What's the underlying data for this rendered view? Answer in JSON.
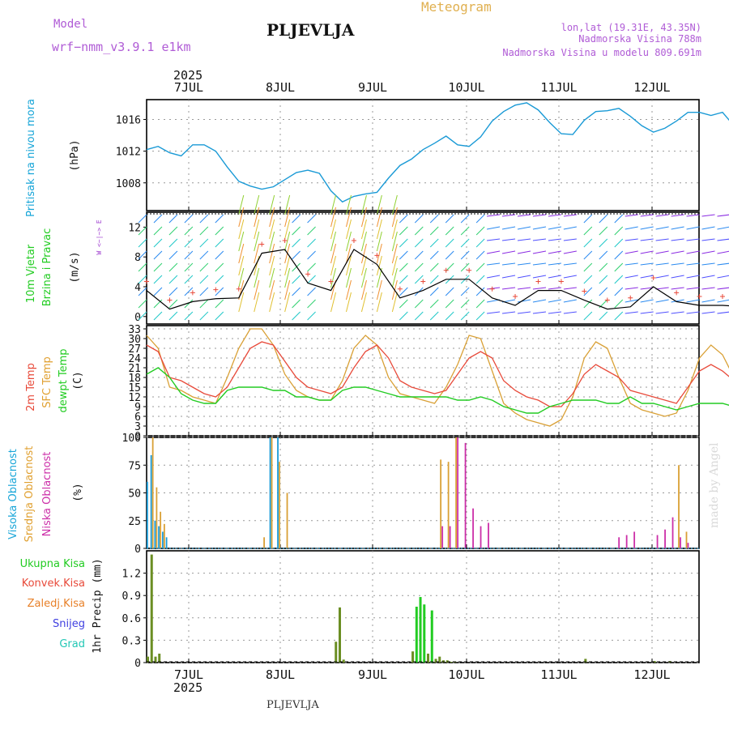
{
  "header": {
    "model_label": "Model",
    "model_value": "wrf−nmm_v3.9.1 e1km",
    "title": "PLJEVLJA",
    "meteogram_label": "Meteogram",
    "lonlat": "lon,lat (19.31E, 43.35N)",
    "altitude": "Nadmorska Visina 788m",
    "model_altitude": "Nadmorska Visina u modelu 809.691m",
    "year_top": "2025",
    "year_bottom": "2025",
    "footer_station": "PLJEVLJA",
    "watermark": "made by Angel"
  },
  "days": [
    "7JUL",
    "8JUL",
    "9JUL",
    "10JUL",
    "11JUL",
    "12JUL"
  ],
  "colors": {
    "pressure": "#1a9ad6",
    "temp2m": "#e84a3a",
    "sfc": "#d9a035",
    "dewpt": "#22cc22",
    "high_cloud": "#1a9ad6",
    "mid_cloud": "#d9a035",
    "low_cloud": "#cc2fa8",
    "precip": "#6b8e23",
    "label_cyan": "#17a5d8",
    "label_green": "#22cc22",
    "label_red": "#e84a3a",
    "label_orange": "#e8812a",
    "label_blue": "#4040e0",
    "label_teal": "#22c7b5",
    "label_purple": "#a040d0"
  },
  "panels": {
    "pressure": {
      "label": "Pritisak na nivou mora",
      "unit": "(hPa)"
    },
    "wind": {
      "label1": "10m Vjetar",
      "label2": "Brzina i Pravac",
      "unit": "(m/s)",
      "compass": "W <−|−> E"
    },
    "temp": {
      "label1": "2m Temp",
      "label2": "SFC Temp",
      "label3": "dewpt Temp",
      "unit": "(C)"
    },
    "cloud": {
      "label1": "Visoka Oblacnost",
      "label2": "Srednja Oblacnost",
      "label3": "Niska Oblacnost",
      "unit": "(%)"
    },
    "precip": {
      "unit": "1hr Precip (mm)",
      "legend": [
        "Ukupna Kisa",
        "Konvek.Kisa",
        "Zaledj.Kisa",
        "Snijeg",
        "Grad"
      ]
    }
  },
  "chart_data": [
    {
      "type": "line",
      "title": "Pritisak na nivou mora",
      "ylabel": "(hPa)",
      "ylim": [
        1004.5,
        1018.5
      ],
      "yticks": [
        1008,
        1012,
        1016
      ],
      "x_hours_from": "6JUL 12h",
      "x": [
        0,
        3,
        6,
        9,
        12,
        15,
        18,
        21,
        24,
        27,
        30,
        33,
        36,
        39,
        42,
        45,
        48,
        51,
        54,
        57,
        60,
        63,
        66,
        69,
        72,
        75,
        78,
        81,
        84,
        87,
        90,
        93,
        96,
        99,
        102,
        105,
        108,
        111,
        114,
        117,
        120,
        123,
        126,
        129,
        132,
        135,
        138,
        141,
        144,
        147,
        150,
        153,
        156,
        159,
        162,
        165,
        168,
        171,
        174,
        177,
        180
      ],
      "series": [
        {
          "values": [
            1012.2,
            1012.6,
            1011.8,
            1011.4,
            1012.8,
            1012.8,
            1012.0,
            1010.0,
            1008.2,
            1007.6,
            1007.2,
            1007.5,
            1008.4,
            1009.3,
            1009.6,
            1009.2,
            1007.0,
            1005.6,
            1006.3,
            1006.6,
            1006.8,
            1008.6,
            1010.2,
            1011.0,
            1012.2,
            1013.0,
            1013.9,
            1012.8,
            1012.6,
            1013.8,
            1015.8,
            1017.0,
            1017.8,
            1018.1,
            1017.2,
            1015.6,
            1014.2,
            1014.1,
            1015.9,
            1017.0,
            1017.1,
            1017.4,
            1016.4,
            1015.2,
            1014.4,
            1014.9,
            1015.8,
            1016.9,
            1016.9,
            1016.5,
            1016.9,
            1015.2,
            1014.1,
            1013.9,
            1013.8,
            1013.8,
            1013.8,
            1013.8,
            1013.8,
            1013.8,
            1013.8
          ]
        }
      ]
    },
    {
      "type": "line",
      "title": "10m Vjetar Brzina i Pravac",
      "ylabel": "(m/s)",
      "ylim": [
        -1,
        14
      ],
      "yticks": [
        0,
        4,
        8,
        12
      ],
      "x": [
        0,
        6,
        12,
        18,
        24,
        30,
        36,
        42,
        48,
        54,
        60,
        66,
        72,
        78,
        84,
        90,
        96,
        102,
        108,
        114,
        120,
        126,
        132,
        138,
        144,
        150,
        156,
        162,
        168,
        174,
        180
      ],
      "series": [
        {
          "values": [
            3.5,
            1.0,
            2.0,
            2.4,
            2.5,
            8.5,
            9.0,
            4.5,
            3.5,
            9.0,
            7.0,
            2.5,
            3.5,
            5.0,
            5.0,
            2.5,
            1.5,
            3.5,
            3.5,
            2.2,
            1.0,
            1.3,
            4.0,
            2.0,
            1.5,
            1.5,
            1.3,
            1.3,
            1.4,
            1.4,
            1.5
          ]
        }
      ]
    },
    {
      "type": "line",
      "title": "2m Temp / SFC Temp / dewpt Temp",
      "ylabel": "(C)",
      "ylim": [
        0,
        34
      ],
      "yticks": [
        0,
        3,
        6,
        9,
        12,
        15,
        18,
        21,
        24,
        27,
        30,
        33
      ],
      "x": [
        0,
        3,
        6,
        9,
        12,
        15,
        18,
        21,
        24,
        27,
        30,
        33,
        36,
        39,
        42,
        45,
        48,
        51,
        54,
        57,
        60,
        63,
        66,
        69,
        72,
        75,
        78,
        81,
        84,
        87,
        90,
        93,
        96,
        99,
        102,
        105,
        108,
        111,
        114,
        117,
        120,
        123,
        126,
        129,
        132,
        135,
        138,
        141,
        144,
        147,
        150,
        153,
        156,
        159,
        162,
        165,
        168,
        171,
        174,
        177,
        180
      ],
      "series": [
        {
          "name": "2m Temp",
          "values": [
            28,
            26,
            18,
            17,
            15,
            13,
            12,
            15,
            21,
            27,
            29,
            28,
            23,
            18,
            15,
            14,
            13,
            15,
            21,
            26,
            28,
            24,
            17,
            15,
            14,
            13,
            14,
            19,
            24,
            26,
            24,
            17,
            14,
            12,
            11,
            9,
            9,
            13,
            19,
            22,
            20,
            18,
            14,
            13,
            12,
            11,
            10,
            15,
            20,
            22,
            20,
            17,
            14,
            12,
            11,
            10,
            11,
            16,
            21,
            24,
            24
          ]
        },
        {
          "name": "SFC Temp",
          "values": [
            31,
            27,
            15,
            14,
            12,
            11,
            10,
            18,
            27,
            33,
            33,
            28,
            19,
            14,
            12,
            11,
            11,
            17,
            27,
            31,
            28,
            18,
            13,
            12,
            11,
            10,
            15,
            22,
            31,
            30,
            20,
            10,
            7,
            5,
            4,
            3,
            5,
            12,
            24,
            29,
            27,
            18,
            10,
            8,
            7,
            6,
            7,
            14,
            24,
            28,
            25,
            18,
            10,
            8,
            7,
            6,
            7,
            16,
            28,
            31,
            28
          ]
        },
        {
          "name": "dewpt Temp",
          "values": [
            19,
            21,
            18,
            13,
            11,
            10,
            10,
            14,
            15,
            15,
            15,
            14,
            14,
            12,
            12,
            11,
            11,
            14,
            15,
            15,
            14,
            13,
            12,
            12,
            12,
            12,
            12,
            11,
            11,
            12,
            11,
            9,
            8,
            7,
            7,
            9,
            10,
            11,
            11,
            11,
            10,
            10,
            12,
            10,
            10,
            9,
            8,
            9,
            10,
            10,
            10,
            9,
            8,
            7,
            7,
            7,
            7,
            8,
            10,
            10,
            11
          ]
        }
      ]
    },
    {
      "type": "bar",
      "title": "Visoka / Srednja / Niska Oblacnost",
      "ylabel": "(%)",
      "ylim": [
        0,
        100
      ],
      "yticks": [
        0,
        25,
        50,
        75,
        100
      ],
      "x": [
        0,
        1,
        2,
        3,
        4,
        5,
        6,
        8,
        10,
        12,
        14,
        16,
        18,
        20,
        22,
        24,
        26,
        28,
        30,
        32,
        34,
        36,
        38,
        40,
        42,
        44,
        46,
        48,
        50,
        52,
        54,
        56,
        58,
        60,
        62,
        64,
        66,
        68,
        70,
        72,
        74,
        76,
        78,
        80,
        82,
        84,
        86,
        88,
        90,
        92,
        94,
        96,
        98,
        100,
        102,
        104,
        106,
        108,
        110,
        112,
        114,
        116,
        118,
        120,
        122,
        124,
        126,
        128,
        130,
        132,
        134,
        136,
        138,
        140,
        142,
        144,
        146,
        148,
        150,
        152,
        154,
        156,
        158,
        160,
        162,
        164,
        166,
        168,
        170,
        172,
        174,
        176,
        178,
        180
      ],
      "series": [
        {
          "name": "Visoka Oblacnost",
          "values": [
            60,
            84,
            25,
            20,
            15,
            10,
            0,
            0,
            0,
            0,
            0,
            0,
            0,
            0,
            0,
            0,
            0,
            0,
            0,
            100,
            100,
            0,
            0,
            0,
            0,
            0,
            0,
            0,
            0,
            0,
            0,
            0,
            0,
            0,
            0,
            0,
            0,
            0,
            0,
            0,
            0,
            0,
            0,
            0,
            0,
            0,
            0,
            0,
            0,
            0,
            0,
            0,
            0,
            0,
            0,
            0,
            0,
            0,
            0,
            0,
            0,
            0,
            0,
            0,
            0,
            0,
            0,
            0,
            0,
            0,
            0,
            0,
            0,
            0,
            0,
            0,
            0,
            0,
            0,
            0,
            0,
            0,
            0,
            0,
            0,
            0,
            0,
            0,
            0,
            0,
            0,
            0,
            0,
            2
          ]
        },
        {
          "name": "Srednja Oblacnost",
          "values": [
            0,
            100,
            55,
            33,
            22,
            0,
            0,
            0,
            0,
            0,
            0,
            0,
            0,
            0,
            0,
            0,
            0,
            0,
            10,
            100,
            78,
            50,
            0,
            0,
            0,
            0,
            0,
            0,
            0,
            0,
            0,
            0,
            0,
            0,
            0,
            0,
            0,
            0,
            0,
            0,
            0,
            80,
            78,
            100,
            0,
            0,
            0,
            0,
            0,
            0,
            0,
            0,
            0,
            0,
            0,
            0,
            0,
            0,
            0,
            0,
            0,
            0,
            0,
            0,
            0,
            0,
            0,
            0,
            0,
            0,
            0,
            0,
            75,
            15,
            0,
            0,
            0,
            0,
            0,
            0,
            0,
            0,
            31,
            56,
            58,
            0,
            0,
            0,
            0,
            0,
            0,
            0,
            0,
            5
          ]
        },
        {
          "name": "Niska Oblacnost",
          "values": [
            0,
            0,
            0,
            0,
            0,
            0,
            0,
            0,
            0,
            0,
            0,
            0,
            0,
            0,
            0,
            0,
            0,
            0,
            0,
            0,
            0,
            0,
            0,
            0,
            0,
            0,
            0,
            0,
            0,
            0,
            0,
            0,
            0,
            0,
            0,
            0,
            0,
            0,
            0,
            0,
            0,
            20,
            20,
            100,
            95,
            36,
            20,
            23,
            0,
            0,
            0,
            0,
            0,
            0,
            0,
            0,
            0,
            0,
            0,
            0,
            0,
            0,
            0,
            0,
            10,
            12,
            15,
            0,
            0,
            12,
            17,
            28,
            10,
            5,
            0,
            0,
            0,
            0,
            0,
            10,
            10,
            45,
            20,
            0,
            0,
            0,
            0,
            0,
            0,
            0,
            0,
            0,
            0,
            0
          ]
        }
      ]
    },
    {
      "type": "bar",
      "title": "1hr Precip",
      "ylabel": "1hr Precip (mm)",
      "ylim": [
        0,
        1.5
      ],
      "yticks": [
        0,
        0.3,
        0.6,
        0.9,
        1.2
      ],
      "x": [
        0,
        1,
        2,
        3,
        49,
        50,
        51,
        69,
        70,
        71,
        72,
        73,
        74,
        75,
        76,
        77,
        78,
        79,
        80,
        114,
        132,
        136,
        163,
        164,
        165,
        166,
        180
      ],
      "series": [
        {
          "name": "Ukupna Kisa",
          "values": [
            0.08,
            1.45,
            0.08,
            0.12,
            0.28,
            0.74,
            0.04,
            0.15,
            0.75,
            0.88,
            0.78,
            0.12,
            0.7,
            0.05,
            0.08,
            0.03,
            0.03,
            0.01,
            0.01,
            0.05,
            0.02,
            0.02,
            0.25,
            0.03,
            0.08,
            0.1,
            0.12
          ]
        },
        {
          "name": "Konvek.Kisa",
          "values": [
            0,
            0,
            0,
            0,
            0,
            0,
            0,
            0,
            0,
            0,
            0,
            0,
            0,
            0,
            0,
            0,
            0,
            0,
            0,
            0,
            0,
            0,
            0,
            0,
            0,
            0,
            0.12
          ]
        }
      ]
    }
  ]
}
